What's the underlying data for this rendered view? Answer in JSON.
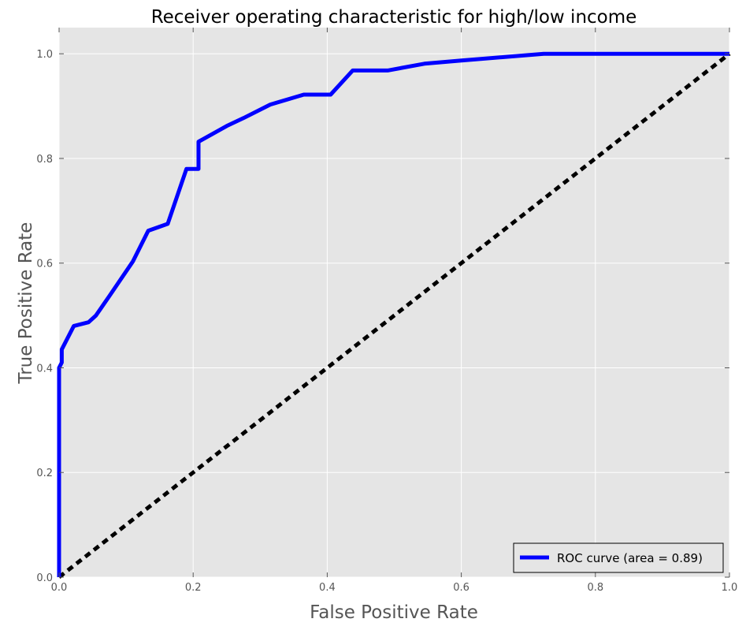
{
  "chart_data": {
    "type": "line",
    "title": "Receiver operating characteristic for high/low income",
    "xlabel": "False Positive Rate",
    "ylabel": "True Positive Rate",
    "xlim": [
      0,
      1
    ],
    "ylim": [
      0,
      1.05
    ],
    "x_ticks": [
      "0.0",
      "0.2",
      "0.4",
      "0.6",
      "0.8",
      "1.0"
    ],
    "y_ticks": [
      "0.0",
      "0.2",
      "0.4",
      "0.6",
      "0.8",
      "1.0"
    ],
    "grid": true,
    "legend_position": "lower-right",
    "background_color": "#e5e5e5",
    "series": [
      {
        "name": "ROC curve (area = 0.89)",
        "color": "#0000ff",
        "style": "solid",
        "x": [
          0.0,
          0.0,
          0.0,
          0.0,
          0.004,
          0.004,
          0.022,
          0.044,
          0.055,
          0.075,
          0.11,
          0.133,
          0.162,
          0.19,
          0.208,
          0.208,
          0.25,
          0.275,
          0.315,
          0.365,
          0.405,
          0.438,
          0.49,
          0.545,
          0.6,
          0.723,
          1.0
        ],
        "y": [
          0.0,
          0.02,
          0.36,
          0.4,
          0.41,
          0.435,
          0.48,
          0.487,
          0.5,
          0.537,
          0.603,
          0.662,
          0.675,
          0.78,
          0.78,
          0.832,
          0.862,
          0.877,
          0.903,
          0.922,
          0.922,
          0.968,
          0.968,
          0.981,
          0.987,
          1.0,
          1.0
        ]
      },
      {
        "name": "",
        "color": "#000000",
        "style": "dashed",
        "x": [
          0.0,
          1.0
        ],
        "y": [
          0.0,
          1.0
        ]
      }
    ]
  }
}
